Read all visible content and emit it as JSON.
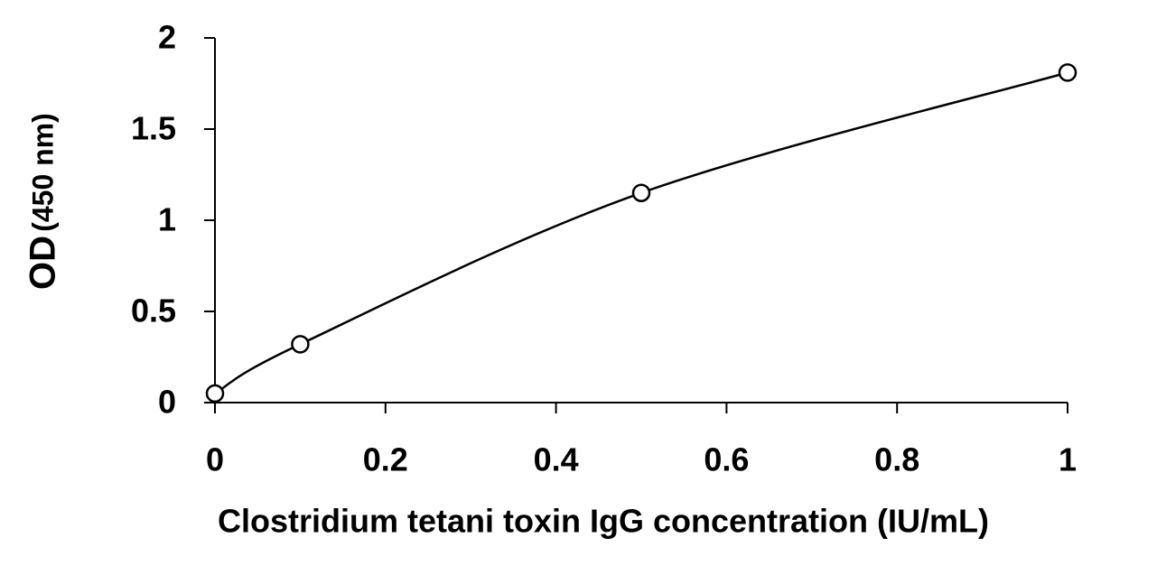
{
  "chart_data": {
    "type": "scatter",
    "x_label": "Clostridium tetani toxin IgG concentration (IU/mL)",
    "y_label": "OD",
    "y_label_unit": "(450 nm)",
    "x": [
      0,
      0.1,
      0.5,
      1
    ],
    "series": [
      {
        "color": "#000000",
        "values": [
          0.05,
          0.32,
          1.15,
          1.81
        ]
      }
    ],
    "xlim": [
      0,
      1
    ],
    "xticks": [
      0,
      0.2,
      0.4,
      0.6,
      0.8,
      1
    ],
    "ylim": [
      0,
      2
    ],
    "yticks": [
      0,
      0.5,
      1,
      1.5,
      2
    ]
  }
}
